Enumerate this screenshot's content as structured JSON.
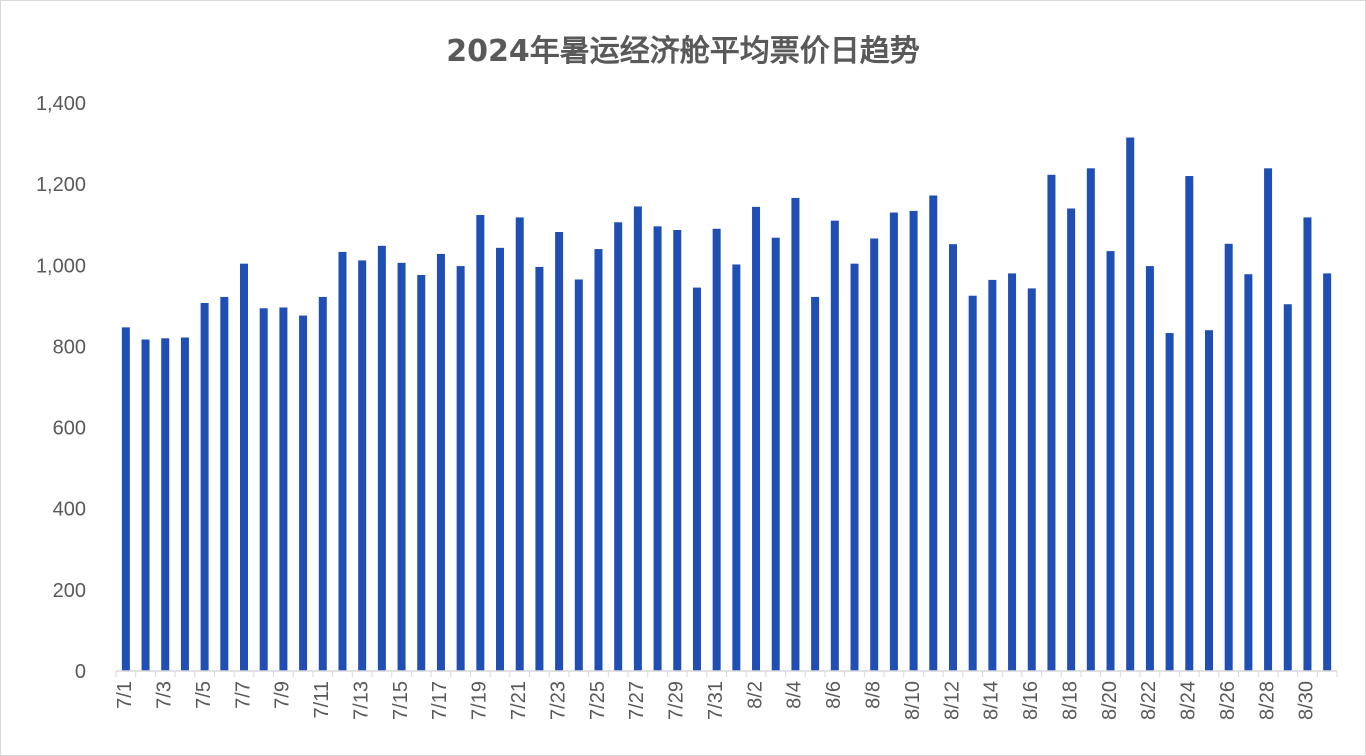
{
  "chart_data": {
    "type": "bar",
    "title": "2024年暑运经济舱平均票价日趋势",
    "xlabel": "",
    "ylabel": "",
    "ylim": [
      0,
      1400
    ],
    "yticks": [
      0,
      200,
      400,
      600,
      800,
      1000,
      1200,
      1400
    ],
    "ytick_labels": [
      "0",
      "200",
      "400",
      "600",
      "800",
      "1,000",
      "1,200",
      "1,400"
    ],
    "grid": false,
    "legend": "none",
    "bar_color": "#1f4eb4",
    "categories": [
      "7/1",
      "7/2",
      "7/3",
      "7/4",
      "7/5",
      "7/6",
      "7/7",
      "7/8",
      "7/9",
      "7/10",
      "7/11",
      "7/12",
      "7/13",
      "7/14",
      "7/15",
      "7/16",
      "7/17",
      "7/18",
      "7/19",
      "7/20",
      "7/21",
      "7/22",
      "7/23",
      "7/24",
      "7/25",
      "7/26",
      "7/27",
      "7/28",
      "7/29",
      "7/30",
      "7/31",
      "8/1",
      "8/2",
      "8/3",
      "8/4",
      "8/5",
      "8/6",
      "8/7",
      "8/8",
      "8/9",
      "8/10",
      "8/11",
      "8/12",
      "8/13",
      "8/14",
      "8/15",
      "8/16",
      "8/17",
      "8/18",
      "8/19",
      "8/20",
      "8/21",
      "8/22",
      "8/23",
      "8/24",
      "8/25",
      "8/26",
      "8/27",
      "8/28",
      "8/29",
      "8/30",
      "8/31"
    ],
    "visible_tick_labels": [
      "7/1",
      "7/3",
      "7/5",
      "7/7",
      "7/9",
      "7/11",
      "7/13",
      "7/15",
      "7/17",
      "7/19",
      "7/21",
      "7/23",
      "7/25",
      "7/27",
      "7/29",
      "7/31",
      "8/2",
      "8/4",
      "8/6",
      "8/8",
      "8/10",
      "8/12",
      "8/14",
      "8/16",
      "8/18",
      "8/20",
      "8/22",
      "8/24",
      "8/26",
      "8/28",
      "8/30"
    ],
    "values": [
      847,
      817,
      820,
      822,
      907,
      922,
      1004,
      894,
      896,
      876,
      922,
      1033,
      1012,
      1048,
      1006,
      976,
      1028,
      998,
      1124,
      1043,
      1118,
      996,
      1082,
      965,
      1040,
      1106,
      1145,
      1096,
      1087,
      945,
      1090,
      1002,
      1144,
      1068,
      1166,
      922,
      1110,
      1004,
      1066,
      1130,
      1134,
      1172,
      1052,
      925,
      964,
      980,
      943,
      1223,
      1140,
      1239,
      1035,
      1315,
      998,
      833,
      1220,
      840,
      1053,
      978,
      1239,
      904,
      1118,
      980
    ]
  }
}
